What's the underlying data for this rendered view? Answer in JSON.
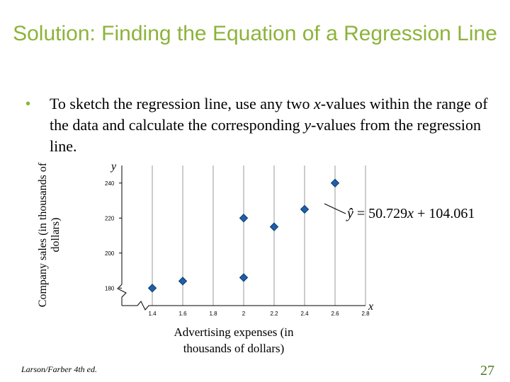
{
  "slide": {
    "title": "Solution: Finding the Equation of a Regression Line",
    "bullet": {
      "before_x": "To sketch the regression line, use any two ",
      "x_var": "x",
      "middle": "-values within the range of the data and calculate the corresponding ",
      "y_var": "y",
      "after_y": "-values from the regression line."
    },
    "footer_source": "Larson/Farber 4th ed.",
    "page_number": "27"
  },
  "colors": {
    "title": "#8db33a",
    "marker": "#1f5fa8",
    "marker_edge": "#0d3d75",
    "page_number": "#4a7a1c"
  },
  "chart_data": {
    "type": "scatter",
    "title": "",
    "xlabel": "Advertising expenses (in thousands of dollars)",
    "ylabel": "Company sales (in thousands of dollars)",
    "x_axis_var": "x",
    "y_axis_var": "y",
    "xlim": [
      1.2,
      2.8
    ],
    "ylim": [
      170,
      250
    ],
    "xticks": [
      "1.4",
      "1.6",
      "1.8",
      "2",
      "2.2",
      "2.4",
      "2.6",
      "2.8"
    ],
    "yticks": [
      "180",
      "200",
      "220",
      "240"
    ],
    "grid": "vertical",
    "axis_break": true,
    "points": [
      {
        "x": 1.4,
        "y": 180
      },
      {
        "x": 1.6,
        "y": 184
      },
      {
        "x": 2.0,
        "y": 220
      },
      {
        "x": 2.0,
        "y": 186
      },
      {
        "x": 2.2,
        "y": 215
      },
      {
        "x": 2.4,
        "y": 225
      },
      {
        "x": 2.6,
        "y": 240
      }
    ],
    "equation": {
      "lhs": "ŷ",
      "rhs_1": " = 50.729",
      "var": "x",
      "rhs_2": " + 104.061"
    }
  }
}
